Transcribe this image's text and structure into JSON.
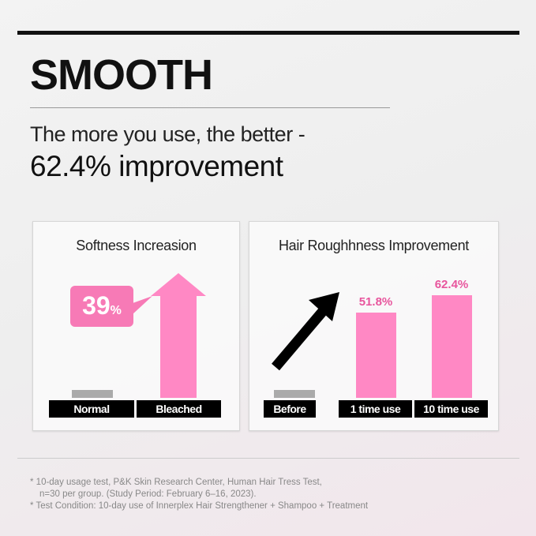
{
  "header": {
    "title": "SMOOTH",
    "subtitle": "The more you use, the better -",
    "headline": "62.4% improvement"
  },
  "colors": {
    "bar": "#ff88c4",
    "baseline": "#aaaaaa",
    "accent_text": "#e8559d",
    "label_bg": "#000000"
  },
  "chart_data": [
    {
      "type": "bar",
      "title": "Softness Increasion",
      "categories": [
        "Normal",
        "Bleached"
      ],
      "values": [
        null,
        39
      ],
      "value_labels": [
        "",
        "39"
      ],
      "unit": "%",
      "annotation": "39%",
      "baseline_category": "Normal"
    },
    {
      "type": "bar",
      "title": "Hair Roughhness Improvement",
      "categories": [
        "Before",
        "1 time use",
        "10 time use"
      ],
      "values": [
        null,
        51.8,
        62.4
      ],
      "value_labels": [
        "",
        "51.8%",
        "62.4%"
      ],
      "baseline_category": "Before"
    }
  ],
  "footnotes": [
    "* 10-day usage test, P&K Skin Research Center, Human Hair Tress Test,",
    "n=30 per group. (Study Period: February 6–16, 2023).",
    "* Test Condition: 10-day use of Innerplex Hair Strengthener + Shampoo + Treatment"
  ]
}
